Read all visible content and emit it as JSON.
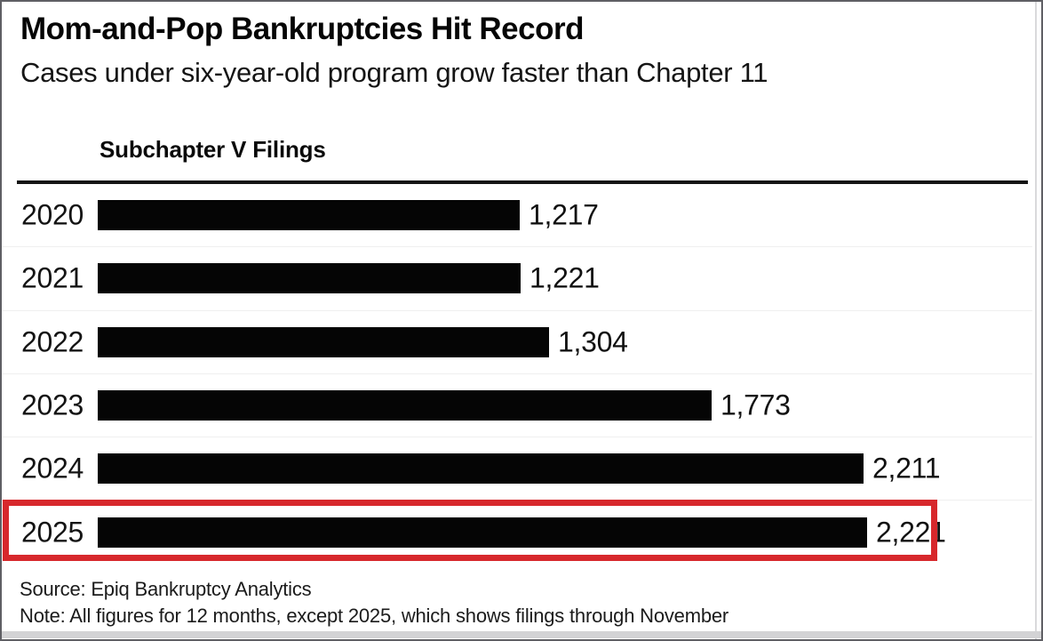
{
  "chart": {
    "title": "Mom-and-Pop Bankruptcies Hit Record",
    "subtitle": "Cases under six-year-old program grow faster than Chapter 11",
    "series_label": "Subchapter V Filings",
    "source": "Source: Epiq Bankruptcy Analytics",
    "note": "Note: All figures for 12 months, except 2025, which shows filings through November",
    "bar_color": "#050505",
    "highlight_color": "#d7282c"
  },
  "chart_data": {
    "type": "bar",
    "orientation": "horizontal",
    "title": "Subchapter V Filings",
    "categories": [
      "2020",
      "2021",
      "2022",
      "2023",
      "2024",
      "2025"
    ],
    "values": [
      1217,
      1221,
      1304,
      1773,
      2211,
      2221
    ],
    "value_labels": [
      "1,217",
      "1,221",
      "1,304",
      "1,773",
      "2,211",
      "2,221"
    ],
    "xlim": [
      0,
      2221
    ],
    "grid": false,
    "legend": false,
    "highlighted_category": "2025",
    "annotations": [
      "2025 row outlined with red rectangle to mark the record"
    ]
  }
}
